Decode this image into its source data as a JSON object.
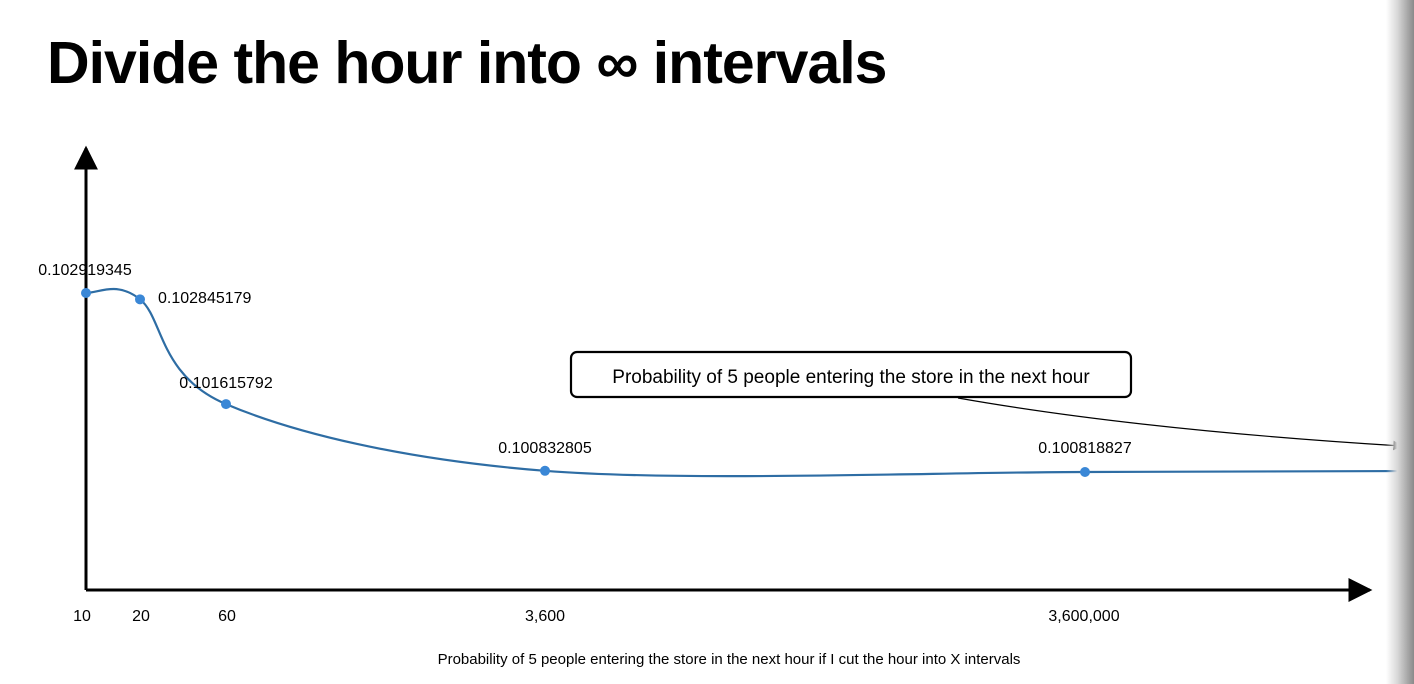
{
  "title": "Divide the hour into ∞ intervals",
  "chart_data": {
    "type": "line",
    "x": [
      "10",
      "20",
      "60",
      "3,600",
      "3,600,000"
    ],
    "categories": [
      "10",
      "20",
      "60",
      "3,600",
      "3,600,000"
    ],
    "values": [
      0.102919345,
      0.102845179,
      0.101615792,
      0.100832805,
      0.100818827
    ],
    "data_labels": [
      "0.102919345",
      "0.102845179",
      "0.101615792",
      "0.100832805",
      "0.100818827"
    ],
    "series": [
      {
        "values": [
          0.102919345,
          0.102845179,
          0.101615792,
          0.100832805,
          0.100818827
        ]
      }
    ],
    "title": "",
    "xlabel": "Probability of 5 people entering the store in the next hour if I cut the hour into X intervals",
    "ylabel": "",
    "grid": false,
    "legend": "none",
    "annotation": {
      "text": "Probability of 5 people entering the store in the next hour",
      "points_to": "right"
    },
    "colors": {
      "line": "#2e6da4",
      "marker": "#3a87d6",
      "axis": "#000000"
    }
  }
}
